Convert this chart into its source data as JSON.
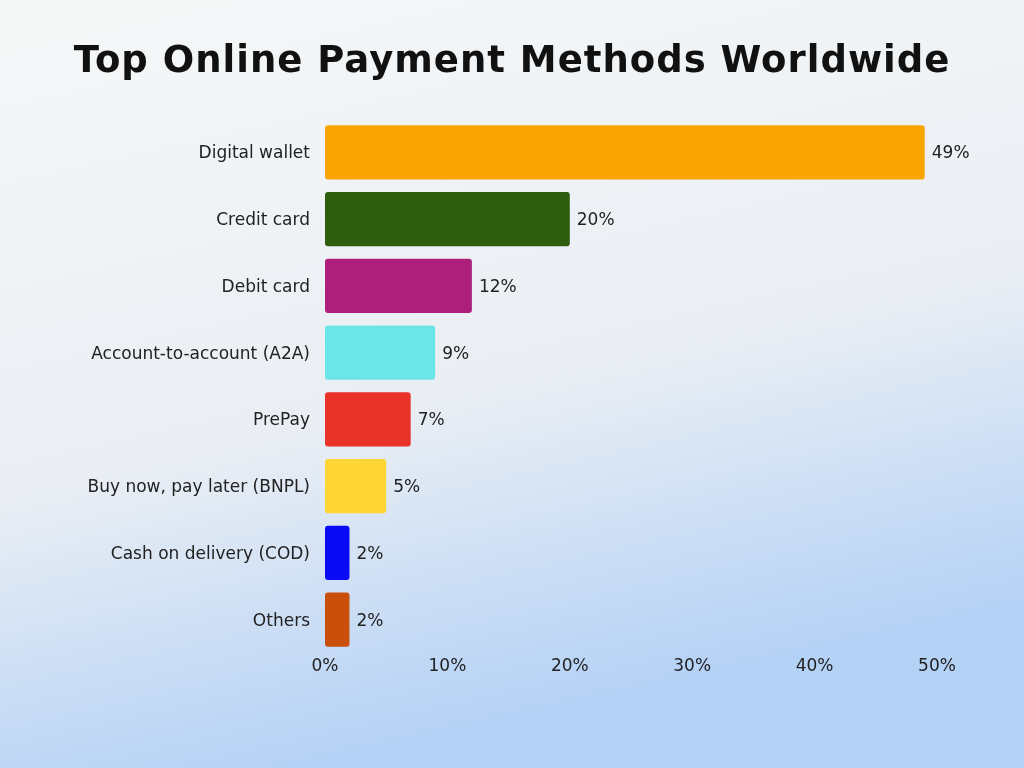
{
  "chart_data": {
    "type": "bar",
    "orientation": "horizontal",
    "title": "Top Online Payment Methods Worldwide",
    "categories": [
      "Digital wallet",
      "Credit card",
      "Debit card",
      "Account-to-account (A2A)",
      "PrePay",
      "Buy now, pay later (BNPL)",
      "Cash on delivery (COD)",
      "Others"
    ],
    "values": [
      49,
      20,
      12,
      9,
      7,
      5,
      2,
      2
    ],
    "colors": [
      "#f9a602",
      "#2d5e0f",
      "#ad1f7a",
      "#6ce5e8",
      "#e8322a",
      "#fdd535",
      "#0a0af5",
      "#c94f0b"
    ],
    "xlim": [
      0,
      50
    ],
    "xticks": [
      {
        "value": 0,
        "label": "0%"
      },
      {
        "value": 10,
        "label": "10%"
      },
      {
        "value": 20,
        "label": "20%"
      },
      {
        "value": 30,
        "label": "30%"
      },
      {
        "value": 40,
        "label": "40%"
      },
      {
        "value": 50,
        "label": "50%"
      }
    ],
    "value_labels": [
      "49%",
      "20%",
      "12%",
      "9%",
      "7%",
      "5%",
      "2%",
      "2%"
    ],
    "grid": false
  }
}
